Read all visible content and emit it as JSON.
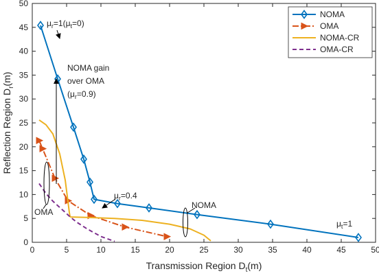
{
  "chart_data": {
    "type": "line",
    "xlabel": "Transmission Region D",
    "xlabel_sub": "t",
    "xlabel_unit": "(m)",
    "ylabel": "Reflection Region D",
    "ylabel_sub": "r",
    "ylabel_unit": "(m)",
    "xlim": [
      0,
      50
    ],
    "ylim": [
      0,
      50
    ],
    "xticks": [
      0,
      5,
      10,
      15,
      20,
      25,
      30,
      35,
      40,
      45,
      50
    ],
    "yticks": [
      0,
      5,
      10,
      15,
      20,
      25,
      30,
      35,
      40,
      45,
      50
    ],
    "grid": false,
    "legend_position": "top-right",
    "series": [
      {
        "name": "NOMA",
        "color": "#0072BD",
        "style": "solid",
        "marker": "diamond",
        "x": [
          1.2,
          3.7,
          6.0,
          7.5,
          8.4,
          9.0,
          12.4,
          17.0,
          24.0,
          34.7,
          47.5
        ],
        "y": [
          45.4,
          34.2,
          24.1,
          17.4,
          12.6,
          9.0,
          8.1,
          7.2,
          5.8,
          3.8,
          1.0
        ]
      },
      {
        "name": "OMA",
        "color": "#D95319",
        "style": "dashdot",
        "marker": "triangle-right",
        "x": [
          1.0,
          1.5,
          3.3,
          5.2,
          8.5,
          13.5,
          19.6
        ],
        "y": [
          21.3,
          19.6,
          13.4,
          8.7,
          5.6,
          3.2,
          1.2
        ]
      },
      {
        "name": "NOMA-CR",
        "color": "#EDB120",
        "style": "solid",
        "marker": "none",
        "x": [
          1.0,
          2.0,
          3.0,
          4.0,
          4.8,
          5.2,
          5.4,
          5.5,
          5.6,
          8,
          12,
          16,
          20,
          23,
          25,
          26.0
        ],
        "y": [
          25.6,
          24.6,
          22.7,
          18.5,
          13.0,
          8.5,
          6.2,
          5.4,
          5.3,
          5.2,
          5.0,
          4.6,
          3.8,
          2.8,
          1.5,
          0.3
        ]
      },
      {
        "name": "OMA-CR",
        "color": "#7E2F8E",
        "style": "dashed",
        "marker": "none",
        "x": [
          1.0,
          2.0,
          3.0,
          4.0,
          5.0,
          5.6,
          6.5,
          8.0,
          10.0,
          12.0
        ],
        "y": [
          12.3,
          10.2,
          8.6,
          7.3,
          6.0,
          5.2,
          4.2,
          2.8,
          1.2,
          0.2
        ]
      }
    ],
    "annotations": {
      "mu_sym": "μ",
      "a1_sub_r": "r",
      "a1_mid": "=1(",
      "a1_sub_t": "t",
      "a1_end": "=0)",
      "gain_line1": "NOMA gain",
      "gain_line2": "over OMA",
      "gain_line3_open": "(",
      "gain_line3_sub": "r",
      "gain_line3_end": "=0.9)",
      "a04_sub": "r",
      "a04_end": "=0.4",
      "oma_label": "OMA",
      "noma_label": "NOMA",
      "at1_sub": "t",
      "at1_end": "=1"
    }
  }
}
